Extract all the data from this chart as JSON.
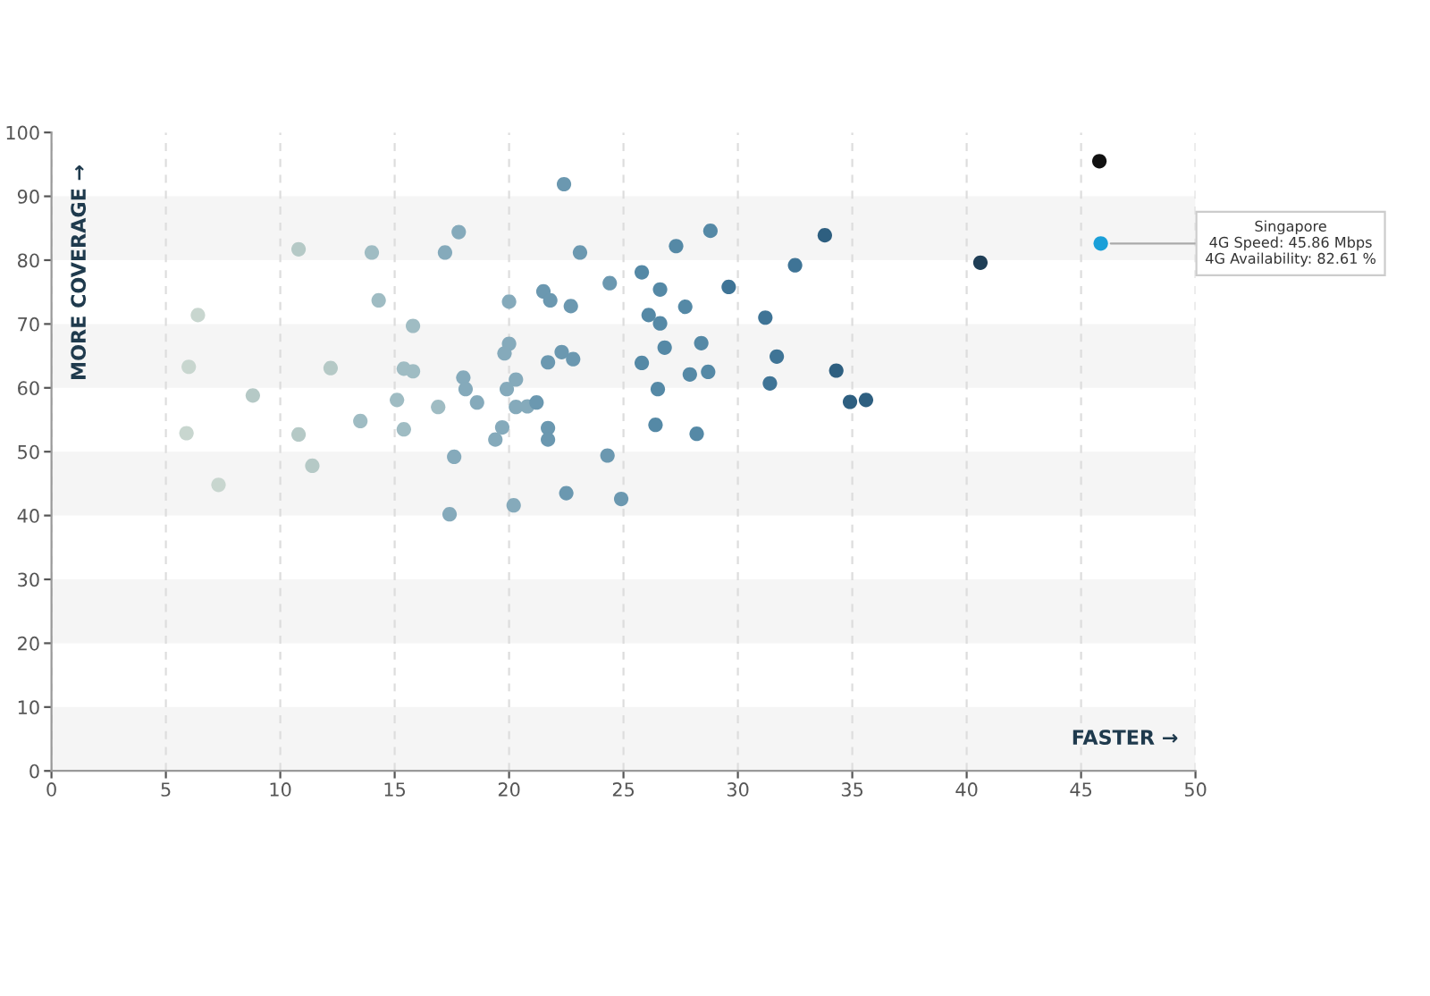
{
  "chart_data": {
    "type": "scatter",
    "xlabel": "FASTER →",
    "ylabel": "MORE COVERAGE →",
    "xlim": [
      0,
      50
    ],
    "xticks": [
      0,
      5,
      10,
      15,
      20,
      25,
      30,
      35,
      40,
      45,
      50
    ],
    "ylim": [
      0,
      100
    ],
    "yticks": [
      0,
      10,
      20,
      30,
      40,
      50,
      60,
      70,
      80,
      90,
      100
    ],
    "grid": "x",
    "marker": "circle",
    "bands": [
      {
        "axis": "y",
        "from": 0,
        "to": 10,
        "color": "#f5f5f5"
      },
      {
        "axis": "y",
        "from": 20,
        "to": 30,
        "color": "#f5f5f5"
      },
      {
        "axis": "y",
        "from": 40,
        "to": 50,
        "color": "#f5f5f5"
      },
      {
        "axis": "y",
        "from": 60,
        "to": 70,
        "color": "#f5f5f5"
      },
      {
        "axis": "y",
        "from": 80,
        "to": 90,
        "color": "#f5f5f5"
      }
    ],
    "annotations": [
      {
        "text": "Singapore\n4G Speed: 45.86 Mbps\n4G Availability: 82.61 %",
        "x": 45.86,
        "y": 82.61
      }
    ],
    "series": [
      {
        "x": [
          10.8,
          14.0,
          17.2,
          6.4,
          14.3,
          15.8,
          6.0,
          12.2,
          15.4,
          15.8,
          8.8,
          15.1,
          16.9,
          5.9,
          10.8,
          13.5,
          15.4,
          11.4,
          7.3,
          22.4,
          17.8,
          28.8,
          27.3,
          23.1,
          25.8,
          24.4,
          29.6,
          26.6,
          21.5,
          21.8,
          20.0,
          22.7,
          27.7,
          26.1,
          26.6,
          20.0,
          28.4,
          19.8,
          26.8,
          22.3,
          22.8,
          21.7,
          25.8,
          18.0,
          18.1,
          20.3,
          19.9,
          27.9,
          28.7,
          26.5,
          18.6,
          20.3,
          20.8,
          21.2,
          19.7,
          21.7,
          19.4,
          21.7,
          26.4,
          28.2,
          17.6,
          24.3,
          22.5,
          24.9,
          20.2,
          17.4,
          45.8,
          45.86,
          33.8,
          40.6,
          32.5,
          31.2,
          31.7,
          34.3,
          31.4,
          34.9,
          35.6
        ],
        "values": [
          81.7,
          81.2,
          81.2,
          71.4,
          73.7,
          69.7,
          63.3,
          63.1,
          63.0,
          62.6,
          58.8,
          58.1,
          57.0,
          52.9,
          52.7,
          54.8,
          53.5,
          47.8,
          44.8,
          91.9,
          84.4,
          84.6,
          82.2,
          81.2,
          78.1,
          76.4,
          75.8,
          75.4,
          75.1,
          73.7,
          73.5,
          72.8,
          72.7,
          71.4,
          70.1,
          66.9,
          67.0,
          65.4,
          66.3,
          65.6,
          64.5,
          64.0,
          63.9,
          61.6,
          59.8,
          61.3,
          59.8,
          62.1,
          62.5,
          59.8,
          57.7,
          57.0,
          57.1,
          57.7,
          53.8,
          53.7,
          51.9,
          51.9,
          54.2,
          52.8,
          49.2,
          49.4,
          43.5,
          42.6,
          41.6,
          40.2,
          95.5,
          82.61,
          83.9,
          79.6,
          79.2,
          71.0,
          64.9,
          62.7,
          60.7,
          57.8,
          58.1
        ],
        "colors": [
          "#b5c9c6",
          "#9fbcc3",
          "#85aabb",
          "#c8d6cf",
          "#9fbcc3",
          "#9fbcc3",
          "#c8d6cf",
          "#b5c9c6",
          "#9fbcc3",
          "#9fbcc3",
          "#b5c9c6",
          "#9fbcc3",
          "#9fbcc3",
          "#c8d6cf",
          "#b5c9c6",
          "#9fbcc3",
          "#9fbcc3",
          "#b5c9c6",
          "#c8d6cf",
          "#6b98b0",
          "#85aabb",
          "#5589a6",
          "#5589a6",
          "#6b98b0",
          "#5589a6",
          "#6b98b0",
          "#3f7496",
          "#5589a6",
          "#6b98b0",
          "#6b98b0",
          "#85aabb",
          "#6b98b0",
          "#5589a6",
          "#5589a6",
          "#5589a6",
          "#85aabb",
          "#5589a6",
          "#85aabb",
          "#5589a6",
          "#6b98b0",
          "#6b98b0",
          "#6b98b0",
          "#5589a6",
          "#85aabb",
          "#85aabb",
          "#85aabb",
          "#85aabb",
          "#5589a6",
          "#5589a6",
          "#5589a6",
          "#85aabb",
          "#85aabb",
          "#85aabb",
          "#6b98b0",
          "#85aabb",
          "#6b98b0",
          "#85aabb",
          "#6b98b0",
          "#5589a6",
          "#5589a6",
          "#85aabb",
          "#6b98b0",
          "#6b98b0",
          "#6b98b0",
          "#85aabb",
          "#85aabb",
          "#111111",
          "#1a9fd8",
          "#2e5f80",
          "#1f3e56",
          "#3f7496",
          "#3f7496",
          "#3f7496",
          "#2e5f80",
          "#3f7496",
          "#2e5f80",
          "#2e5f80"
        ]
      }
    ]
  }
}
